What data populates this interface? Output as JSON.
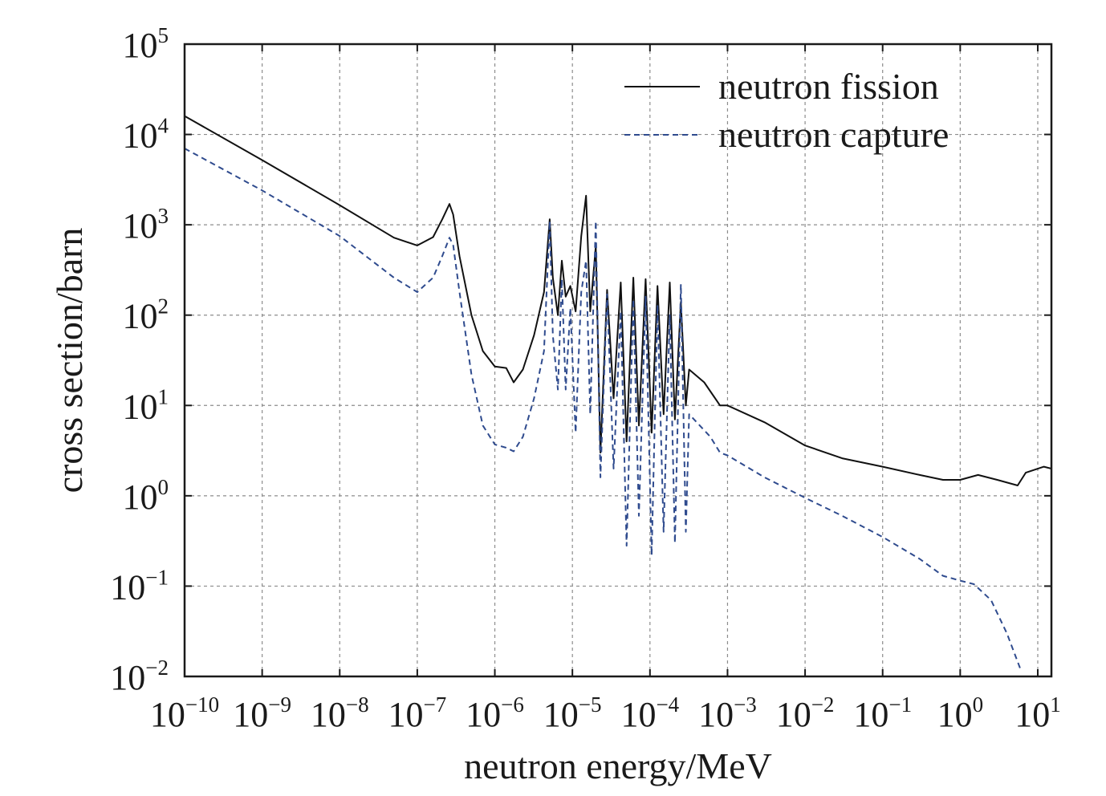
{
  "chart_data": {
    "type": "line",
    "xlabel": "neutron energy/MeV",
    "ylabel": "cross section/barn",
    "x_scale": "log",
    "y_scale": "log",
    "xlim": [
      1e-10,
      15
    ],
    "ylim": [
      0.01,
      100000
    ],
    "grid": true,
    "legend_position": "top-right",
    "x_ticks": [
      {
        "base": "10",
        "exp": "−10",
        "value": 1e-10
      },
      {
        "base": "10",
        "exp": "−9",
        "value": 1e-09
      },
      {
        "base": "10",
        "exp": "−8",
        "value": 1e-08
      },
      {
        "base": "10",
        "exp": "−7",
        "value": 1e-07
      },
      {
        "base": "10",
        "exp": "−6",
        "value": 1e-06
      },
      {
        "base": "10",
        "exp": "−5",
        "value": 1e-05
      },
      {
        "base": "10",
        "exp": "−4",
        "value": 0.0001
      },
      {
        "base": "10",
        "exp": "−3",
        "value": 0.001
      },
      {
        "base": "10",
        "exp": "−2",
        "value": 0.01
      },
      {
        "base": "10",
        "exp": "−1",
        "value": 0.1
      },
      {
        "base": "10",
        "exp": "0",
        "value": 1
      },
      {
        "base": "10",
        "exp": "1",
        "value": 10
      }
    ],
    "y_ticks": [
      {
        "base": "10",
        "exp": "−2",
        "value": 0.01
      },
      {
        "base": "10",
        "exp": "−1",
        "value": 0.1
      },
      {
        "base": "10",
        "exp": "0",
        "value": 1
      },
      {
        "base": "10",
        "exp": "1",
        "value": 10
      },
      {
        "base": "10",
        "exp": "2",
        "value": 100
      },
      {
        "base": "10",
        "exp": "3",
        "value": 1000
      },
      {
        "base": "10",
        "exp": "4",
        "value": 10000
      },
      {
        "base": "10",
        "exp": "5",
        "value": 100000
      }
    ],
    "series": [
      {
        "name": "neutron fission",
        "color": "#111111",
        "line_style": "solid",
        "points": [
          [
            1e-10,
            16000
          ],
          [
            1e-09,
            5200
          ],
          [
            1e-08,
            1650
          ],
          [
            5e-08,
            720
          ],
          [
            1e-07,
            590
          ],
          [
            1.6e-07,
            730
          ],
          [
            2.1e-07,
            1150
          ],
          [
            2.6e-07,
            1700
          ],
          [
            2.9e-07,
            1300
          ],
          [
            3.5e-07,
            450
          ],
          [
            5e-07,
            100
          ],
          [
            7e-07,
            40
          ],
          [
            1e-06,
            27
          ],
          [
            1.4e-06,
            26
          ],
          [
            1.75e-06,
            18
          ],
          [
            2.3e-06,
            25
          ],
          [
            3.2e-06,
            60
          ],
          [
            4.3e-06,
            180
          ],
          [
            5.1e-06,
            1150
          ],
          [
            5.6e-06,
            260
          ],
          [
            6.5e-06,
            100
          ],
          [
            7.3e-06,
            400
          ],
          [
            8.2e-06,
            160
          ],
          [
            9.4e-06,
            210
          ],
          [
            1.1e-05,
            110
          ],
          [
            1.3e-05,
            750
          ],
          [
            1.5e-05,
            2100
          ],
          [
            1.7e-05,
            110
          ],
          [
            2e-05,
            580
          ],
          [
            2.3e-05,
            3.0
          ],
          [
            2.8e-05,
            190
          ],
          [
            3.4e-05,
            12
          ],
          [
            4.2e-05,
            230
          ],
          [
            5e-05,
            4.0
          ],
          [
            6.1e-05,
            260
          ],
          [
            7.2e-05,
            6.0
          ],
          [
            8.8e-05,
            250
          ],
          [
            0.000105,
            5.0
          ],
          [
            0.000125,
            210
          ],
          [
            0.00015,
            8.0
          ],
          [
            0.00018,
            230
          ],
          [
            0.00021,
            7.0
          ],
          [
            0.00025,
            140
          ],
          [
            0.00029,
            10
          ],
          [
            0.00032,
            25
          ],
          [
            0.0005,
            18
          ],
          [
            0.0008,
            10
          ],
          [
            0.001,
            10
          ],
          [
            0.003,
            6.5
          ],
          [
            0.01,
            3.6
          ],
          [
            0.03,
            2.6
          ],
          [
            0.1,
            2.1
          ],
          [
            0.3,
            1.7
          ],
          [
            0.6,
            1.5
          ],
          [
            1,
            1.5
          ],
          [
            1.7,
            1.7
          ],
          [
            3,
            1.5
          ],
          [
            5.5,
            1.3
          ],
          [
            7,
            1.8
          ],
          [
            12,
            2.1
          ],
          [
            15,
            2.0
          ]
        ]
      },
      {
        "name": "neutron capture",
        "color": "#2f4b8e",
        "line_style": "dashed",
        "points": [
          [
            1e-10,
            7000
          ],
          [
            1e-09,
            2400
          ],
          [
            1e-08,
            750
          ],
          [
            5e-08,
            260
          ],
          [
            1e-07,
            180
          ],
          [
            1.6e-07,
            260
          ],
          [
            2.1e-07,
            450
          ],
          [
            2.6e-07,
            720
          ],
          [
            2.9e-07,
            600
          ],
          [
            3.5e-07,
            180
          ],
          [
            5e-07,
            22
          ],
          [
            7e-07,
            6
          ],
          [
            1e-06,
            3.7
          ],
          [
            1.4e-06,
            3.4
          ],
          [
            1.75e-06,
            3.1
          ],
          [
            2.3e-06,
            4.5
          ],
          [
            3.2e-06,
            12
          ],
          [
            4.3e-06,
            40
          ],
          [
            5.1e-06,
            1100
          ],
          [
            5.6e-06,
            60
          ],
          [
            6.5e-06,
            15
          ],
          [
            7.3e-06,
            250
          ],
          [
            8.2e-06,
            15
          ],
          [
            9.4e-06,
            120
          ],
          [
            1.1e-05,
            5.0
          ],
          [
            1.3e-05,
            180
          ],
          [
            1.5e-05,
            400
          ],
          [
            1.7e-05,
            8.0
          ],
          [
            2e-05,
            1100
          ],
          [
            2.3e-05,
            1.6
          ],
          [
            2.8e-05,
            170
          ],
          [
            3.4e-05,
            2.0
          ],
          [
            4.2e-05,
            110
          ],
          [
            5e-05,
            0.28
          ],
          [
            6.1e-05,
            150
          ],
          [
            7.2e-05,
            0.6
          ],
          [
            8.8e-05,
            160
          ],
          [
            0.000105,
            0.22
          ],
          [
            0.000125,
            130
          ],
          [
            0.00015,
            0.4
          ],
          [
            0.00018,
            100
          ],
          [
            0.00021,
            0.3
          ],
          [
            0.00025,
            220
          ],
          [
            0.00029,
            0.4
          ],
          [
            0.00032,
            8
          ],
          [
            0.0006,
            4.5
          ],
          [
            0.0008,
            3.0
          ],
          [
            0.001,
            2.8
          ],
          [
            0.003,
            1.6
          ],
          [
            0.01,
            0.95
          ],
          [
            0.03,
            0.6
          ],
          [
            0.1,
            0.35
          ],
          [
            0.3,
            0.2
          ],
          [
            0.6,
            0.13
          ],
          [
            1,
            0.115
          ],
          [
            1.5,
            0.105
          ],
          [
            2.5,
            0.07
          ],
          [
            4,
            0.03
          ],
          [
            6,
            0.012
          ]
        ]
      }
    ]
  }
}
